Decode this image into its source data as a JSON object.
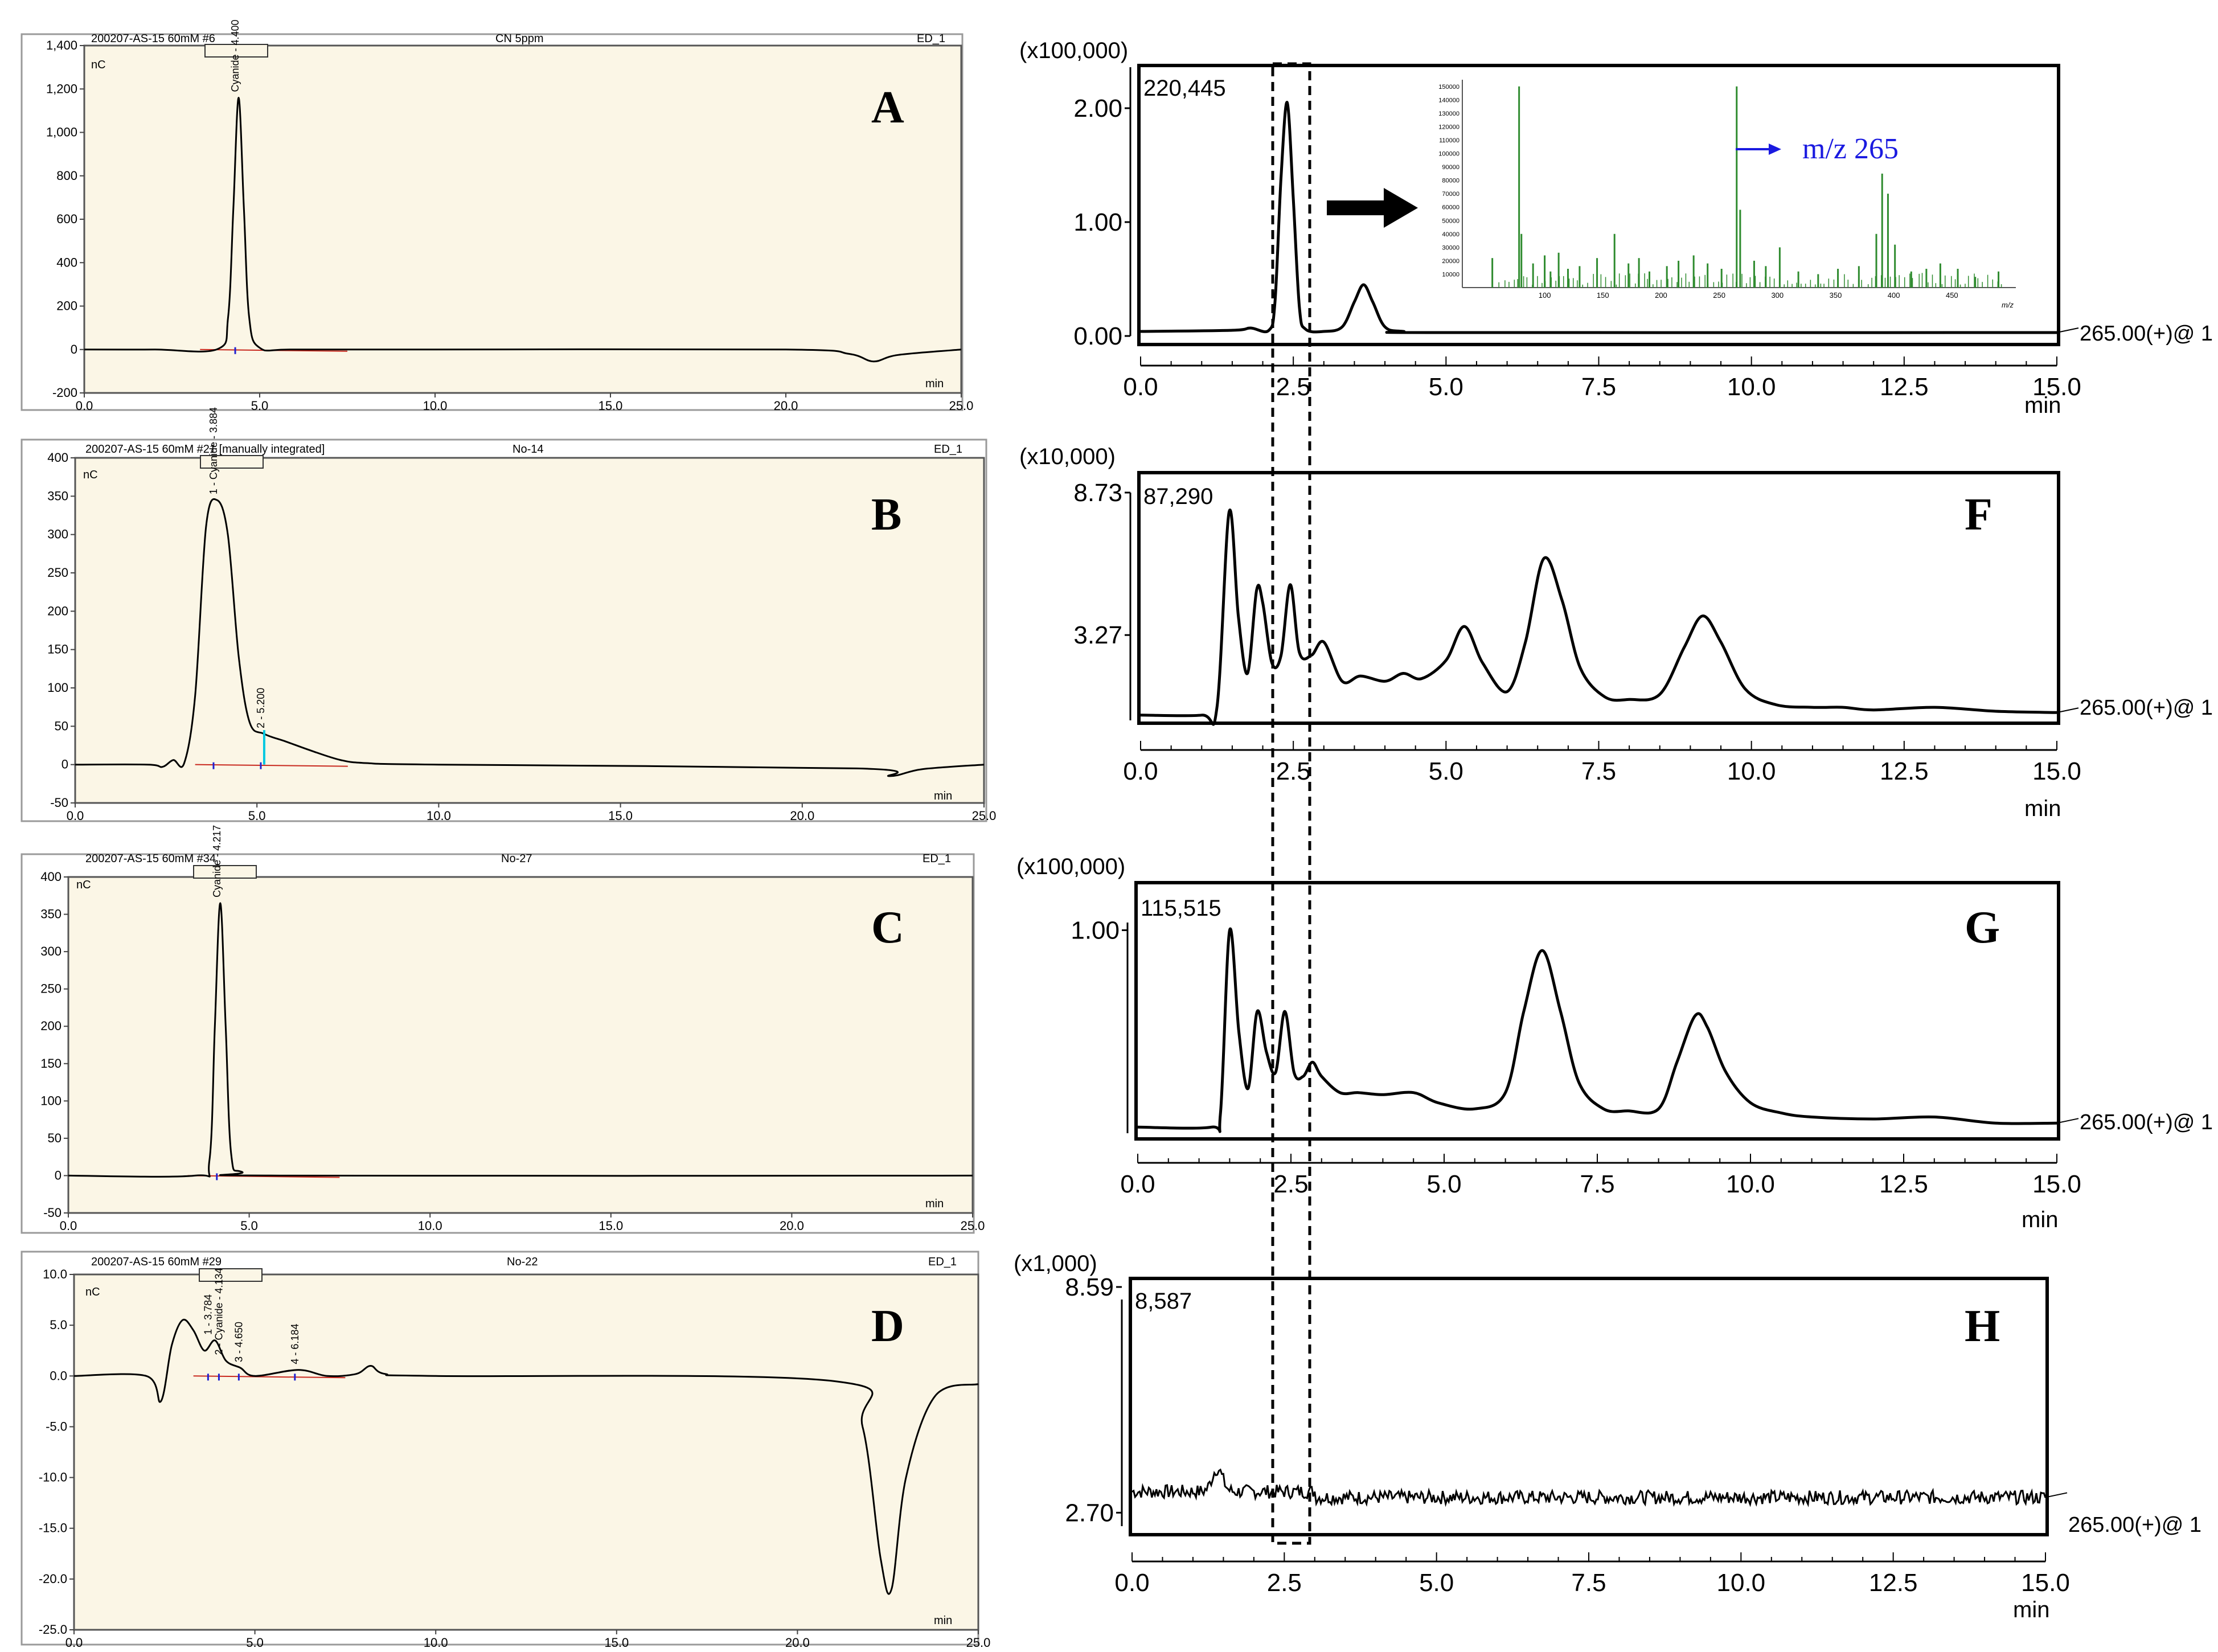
{
  "colors": {
    "panel_bg": "#fbf6e6",
    "trace": "#000000",
    "baseline": "#c8281e",
    "marker_blue": "#2020d0",
    "marker_cyan": "#00c8e0",
    "ms_bars": "#2e8b2e",
    "annotation_blue": "#1a1ae0"
  },
  "chart_data": [
    {
      "id": "A",
      "type": "line",
      "panel_label": "A",
      "header": {
        "left": "200207-AS-15 60mM #6",
        "center": "CN 5ppm",
        "right": "ED_1"
      },
      "ylabel": "nC",
      "xlabel": "min",
      "ylim": [
        -200,
        1400
      ],
      "xlim": [
        0,
        25
      ],
      "yticks": [
        "1,400",
        "1,200",
        "1,000",
        "800",
        "600",
        "400",
        "200",
        "0",
        "-200"
      ],
      "xticks": [
        "0.0",
        "5.0",
        "10.0",
        "15.0",
        "20.0",
        "25.0"
      ],
      "peak_labels": [
        {
          "text": "Cyanide - 4.400",
          "x": 4.4
        }
      ],
      "peaks": [
        {
          "x": 4.4,
          "y": 1160,
          "w": 0.17
        },
        {
          "x": 22.5,
          "y": -55,
          "w": 0.6
        }
      ],
      "series": [
        {
          "x": [
            0,
            2,
            3.8,
            4.1,
            4.25,
            4.4,
            4.55,
            4.7,
            5.0,
            6,
            10,
            20,
            21.8,
            22.5,
            23.2,
            25
          ],
          "y": [
            0,
            0,
            2,
            150,
            650,
            1160,
            650,
            150,
            8,
            0,
            0,
            0,
            -20,
            -55,
            -25,
            0
          ]
        }
      ]
    },
    {
      "id": "B",
      "type": "line",
      "panel_label": "B",
      "header": {
        "left": "200207-AS-15 60mM #21 [manually integrated]",
        "center": "No-14",
        "right": "ED_1"
      },
      "ylabel": "nC",
      "xlabel": "min",
      "ylim": [
        -50,
        400
      ],
      "xlim": [
        0,
        25
      ],
      "yticks": [
        "400",
        "350",
        "300",
        "250",
        "200",
        "150",
        "100",
        "50",
        "0",
        "-50"
      ],
      "xticks": [
        "0.0",
        "5.0",
        "10.0",
        "15.0",
        "20.0",
        "25.0"
      ],
      "peak_labels": [
        {
          "text": "1 - Cyanide - 3.884",
          "x": 3.9
        },
        {
          "text": "2 - 5.200",
          "x": 5.2
        }
      ],
      "series": [
        {
          "x": [
            0,
            2.0,
            2.4,
            2.7,
            3.0,
            3.3,
            3.6,
            3.9,
            4.2,
            4.5,
            4.8,
            5.2,
            5.8,
            6.5,
            7.3,
            8.0,
            10,
            21.5,
            22.4,
            23.3,
            25
          ],
          "y": [
            0,
            0,
            -3,
            6,
            2,
            90,
            310,
            345,
            300,
            140,
            55,
            40,
            30,
            18,
            6,
            2,
            0,
            -5,
            -15,
            -6,
            0
          ]
        }
      ]
    },
    {
      "id": "C",
      "type": "line",
      "panel_label": "C",
      "header": {
        "left": "200207-AS-15 60mM #34",
        "center": "No-27",
        "right": "ED_1"
      },
      "ylabel": "nC",
      "xlabel": "min",
      "ylim": [
        -50,
        400
      ],
      "xlim": [
        0,
        25
      ],
      "yticks": [
        "400",
        "350",
        "300",
        "250",
        "200",
        "150",
        "100",
        "50",
        "0",
        "-50"
      ],
      "xticks": [
        "0.0",
        "5.0",
        "10.0",
        "15.0",
        "20.0",
        "25.0"
      ],
      "peak_labels": [
        {
          "text": "Cyanide - 4.217",
          "x": 4.2
        }
      ],
      "series": [
        {
          "x": [
            0,
            3.5,
            3.9,
            4.05,
            4.2,
            4.35,
            4.5,
            4.8,
            6,
            25
          ],
          "y": [
            0,
            0,
            20,
            200,
            365,
            200,
            30,
            5,
            0,
            0
          ]
        }
      ]
    },
    {
      "id": "D",
      "type": "line",
      "panel_label": "D",
      "header": {
        "left": "200207-AS-15 60mM #29",
        "center": "No-22",
        "right": "ED_1"
      },
      "ylabel": "nC",
      "xlabel": "min",
      "ylim": [
        -25,
        10
      ],
      "xlim": [
        0,
        25
      ],
      "yticks": [
        "10.0",
        "5.0",
        "0.0",
        "-5.0",
        "-10.0",
        "-15.0",
        "-20.0",
        "-25.0"
      ],
      "xticks": [
        "0.0",
        "5.0",
        "10.0",
        "15.0",
        "20.0",
        "25.0"
      ],
      "peak_labels": [
        {
          "text": "1 - 3.784",
          "x": 3.8
        },
        {
          "text": "2 - Cyanide - 4.134",
          "x": 4.1
        },
        {
          "text": "3 - 4.650",
          "x": 4.65
        },
        {
          "text": "4 - 6.184",
          "x": 6.2
        }
      ],
      "series": [
        {
          "x": [
            0,
            2.0,
            2.4,
            2.7,
            3.0,
            3.3,
            3.6,
            3.9,
            4.2,
            4.6,
            5.0,
            6.2,
            7.0,
            7.8,
            8.2,
            8.6,
            10,
            21.0,
            21.8,
            22.3,
            22.6,
            23.0,
            23.8,
            25
          ],
          "y": [
            0,
            0,
            -2.5,
            3,
            5.5,
            4.5,
            2.5,
            3.5,
            1.5,
            0.8,
            0,
            0.6,
            0,
            0.2,
            1,
            0.2,
            0,
            -0.5,
            -5,
            -18,
            -21,
            -10,
            -2,
            -0.8
          ]
        }
      ]
    },
    {
      "id": "E",
      "type": "line",
      "panel_label": "E",
      "scale_label": "(x100,000)",
      "intensity": "220,445",
      "trace_label": "265.00(+)@ 1",
      "xlabel": "min",
      "xlim": [
        0,
        15
      ],
      "yticks": [
        "2.00",
        "1.00",
        "0.00"
      ],
      "ylim": [
        0,
        2.2
      ],
      "xticks": [
        "0.0",
        "2.5",
        "5.0",
        "7.5",
        "10.0",
        "12.5",
        "15.0"
      ],
      "series": [
        {
          "x": [
            0,
            1.5,
            1.8,
            2.1,
            2.2,
            2.3,
            2.4,
            2.5,
            2.6,
            2.7,
            3.0,
            3.3,
            3.5,
            3.65,
            3.8,
            4.0,
            4.3,
            5,
            15
          ],
          "y": [
            0.04,
            0.05,
            0.07,
            0.05,
            0.3,
            1.4,
            2.05,
            1.2,
            0.25,
            0.06,
            0.04,
            0.08,
            0.3,
            0.45,
            0.3,
            0.08,
            0.04,
            0.03,
            0.03
          ]
        }
      ],
      "inset": {
        "annotation": "m/z 265",
        "yticks": [
          "150000",
          "140000",
          "130000",
          "120000",
          "110000",
          "100000",
          "90000",
          "80000",
          "70000",
          "60000",
          "50000",
          "40000",
          "30000",
          "20000",
          "10000"
        ],
        "xticks": [
          "100",
          "150",
          "200",
          "250",
          "300",
          "350",
          "400",
          "450"
        ],
        "xlabel": "m/z",
        "bars_mz": [
          55,
          78,
          80,
          90,
          100,
          105,
          112,
          120,
          130,
          145,
          160,
          172,
          181,
          190,
          205,
          215,
          228,
          240,
          252,
          265,
          268,
          280,
          290,
          302,
          318,
          335,
          352,
          370,
          385,
          390,
          395,
          401,
          415,
          428,
          440,
          455,
          470,
          490
        ],
        "bars_int": [
          22000,
          150000,
          40000,
          18000,
          24000,
          12000,
          26000,
          14000,
          16000,
          22000,
          40000,
          18000,
          22000,
          12000,
          16000,
          20000,
          24000,
          18000,
          14000,
          150000,
          58000,
          20000,
          16000,
          30000,
          12000,
          10000,
          14000,
          16000,
          40000,
          85000,
          70000,
          32000,
          12000,
          14000,
          18000,
          14000,
          8000,
          12000
        ]
      }
    },
    {
      "id": "F",
      "type": "line",
      "panel_label": "F",
      "scale_label": "(x10,000)",
      "intensity": "87,290",
      "trace_label": "265.00(+)@ 1",
      "xlabel": "min",
      "xlim": [
        0,
        15
      ],
      "yticks": [
        "8.73",
        "3.27"
      ],
      "ytick_values": [
        8.73,
        3.27
      ],
      "ylim": [
        0,
        8.73
      ],
      "xticks": [
        "0.0",
        "2.5",
        "5.0",
        "7.5",
        "10.0",
        "12.5",
        "15.0"
      ],
      "series": [
        {
          "x": [
            0,
            1.0,
            1.25,
            1.45,
            1.6,
            1.75,
            1.9,
            2.0,
            2.15,
            2.3,
            2.45,
            2.6,
            2.8,
            3.0,
            3.3,
            3.6,
            4.0,
            4.3,
            4.6,
            5.0,
            5.3,
            5.6,
            6.0,
            6.3,
            6.6,
            6.9,
            7.2,
            7.6,
            8.0,
            8.5,
            8.9,
            9.2,
            9.5,
            9.9,
            10.4,
            11,
            11.5,
            12,
            13,
            14,
            15
          ],
          "y": [
            0.2,
            0.2,
            0.5,
            8.0,
            4.0,
            1.8,
            5.0,
            4.5,
            2.2,
            2.5,
            5.2,
            2.6,
            2.5,
            3.0,
            1.5,
            1.7,
            1.5,
            1.8,
            1.6,
            2.3,
            3.6,
            2.2,
            1.1,
            3.0,
            6.2,
            4.6,
            2.0,
            0.9,
            0.8,
            1.0,
            2.8,
            4.0,
            3.0,
            1.2,
            0.6,
            0.5,
            0.5,
            0.4,
            0.5,
            0.35,
            0.3
          ]
        }
      ]
    },
    {
      "id": "G",
      "type": "line",
      "panel_label": "G",
      "scale_label": "(x100,000)",
      "intensity": "115,515",
      "trace_label": "265.00(+)@ 1",
      "xlabel": "min",
      "xlim": [
        0,
        15
      ],
      "yticks": [
        "1.00"
      ],
      "ytick_values": [
        1.0
      ],
      "ylim": [
        0,
        1.15
      ],
      "xticks": [
        "0.0",
        "2.5",
        "5.0",
        "7.5",
        "10.0",
        "12.5",
        "15.0"
      ],
      "series": [
        {
          "x": [
            0,
            1.2,
            1.35,
            1.5,
            1.65,
            1.8,
            1.95,
            2.1,
            2.25,
            2.4,
            2.55,
            2.7,
            2.85,
            3.0,
            3.3,
            3.6,
            4.0,
            4.5,
            4.9,
            5.5,
            6.0,
            6.3,
            6.6,
            6.9,
            7.2,
            7.6,
            8.0,
            8.5,
            8.8,
            9.1,
            9.3,
            9.6,
            10.0,
            10.5,
            11,
            12,
            13,
            14,
            15
          ],
          "y": [
            0.03,
            0.03,
            0.1,
            1.0,
            0.5,
            0.22,
            0.6,
            0.4,
            0.3,
            0.6,
            0.3,
            0.28,
            0.35,
            0.28,
            0.2,
            0.2,
            0.19,
            0.2,
            0.15,
            0.12,
            0.2,
            0.6,
            0.9,
            0.6,
            0.25,
            0.12,
            0.11,
            0.12,
            0.35,
            0.58,
            0.52,
            0.3,
            0.15,
            0.1,
            0.08,
            0.07,
            0.08,
            0.05,
            0.05
          ]
        }
      ]
    },
    {
      "id": "H",
      "type": "line",
      "panel_label": "H",
      "scale_label": "(x1,000)",
      "intensity": "8,587",
      "trace_label": "265.00(+)@ 1",
      "xlabel": "min",
      "xlim": [
        0,
        15
      ],
      "yticks": [
        "8.59",
        "2.70"
      ],
      "ytick_values": [
        8.59,
        2.7
      ],
      "ylim": [
        2.2,
        8.59
      ],
      "xticks": [
        "0.0",
        "2.5",
        "5.0",
        "7.5",
        "10.0",
        "12.5",
        "15.0"
      ],
      "noise": {
        "base": 3.25,
        "amplitude": 0.18,
        "bump_x": 1.4,
        "bump_h": 0.6
      }
    }
  ],
  "rt_window": {
    "x_start": 2.2,
    "x_end": 2.85
  }
}
